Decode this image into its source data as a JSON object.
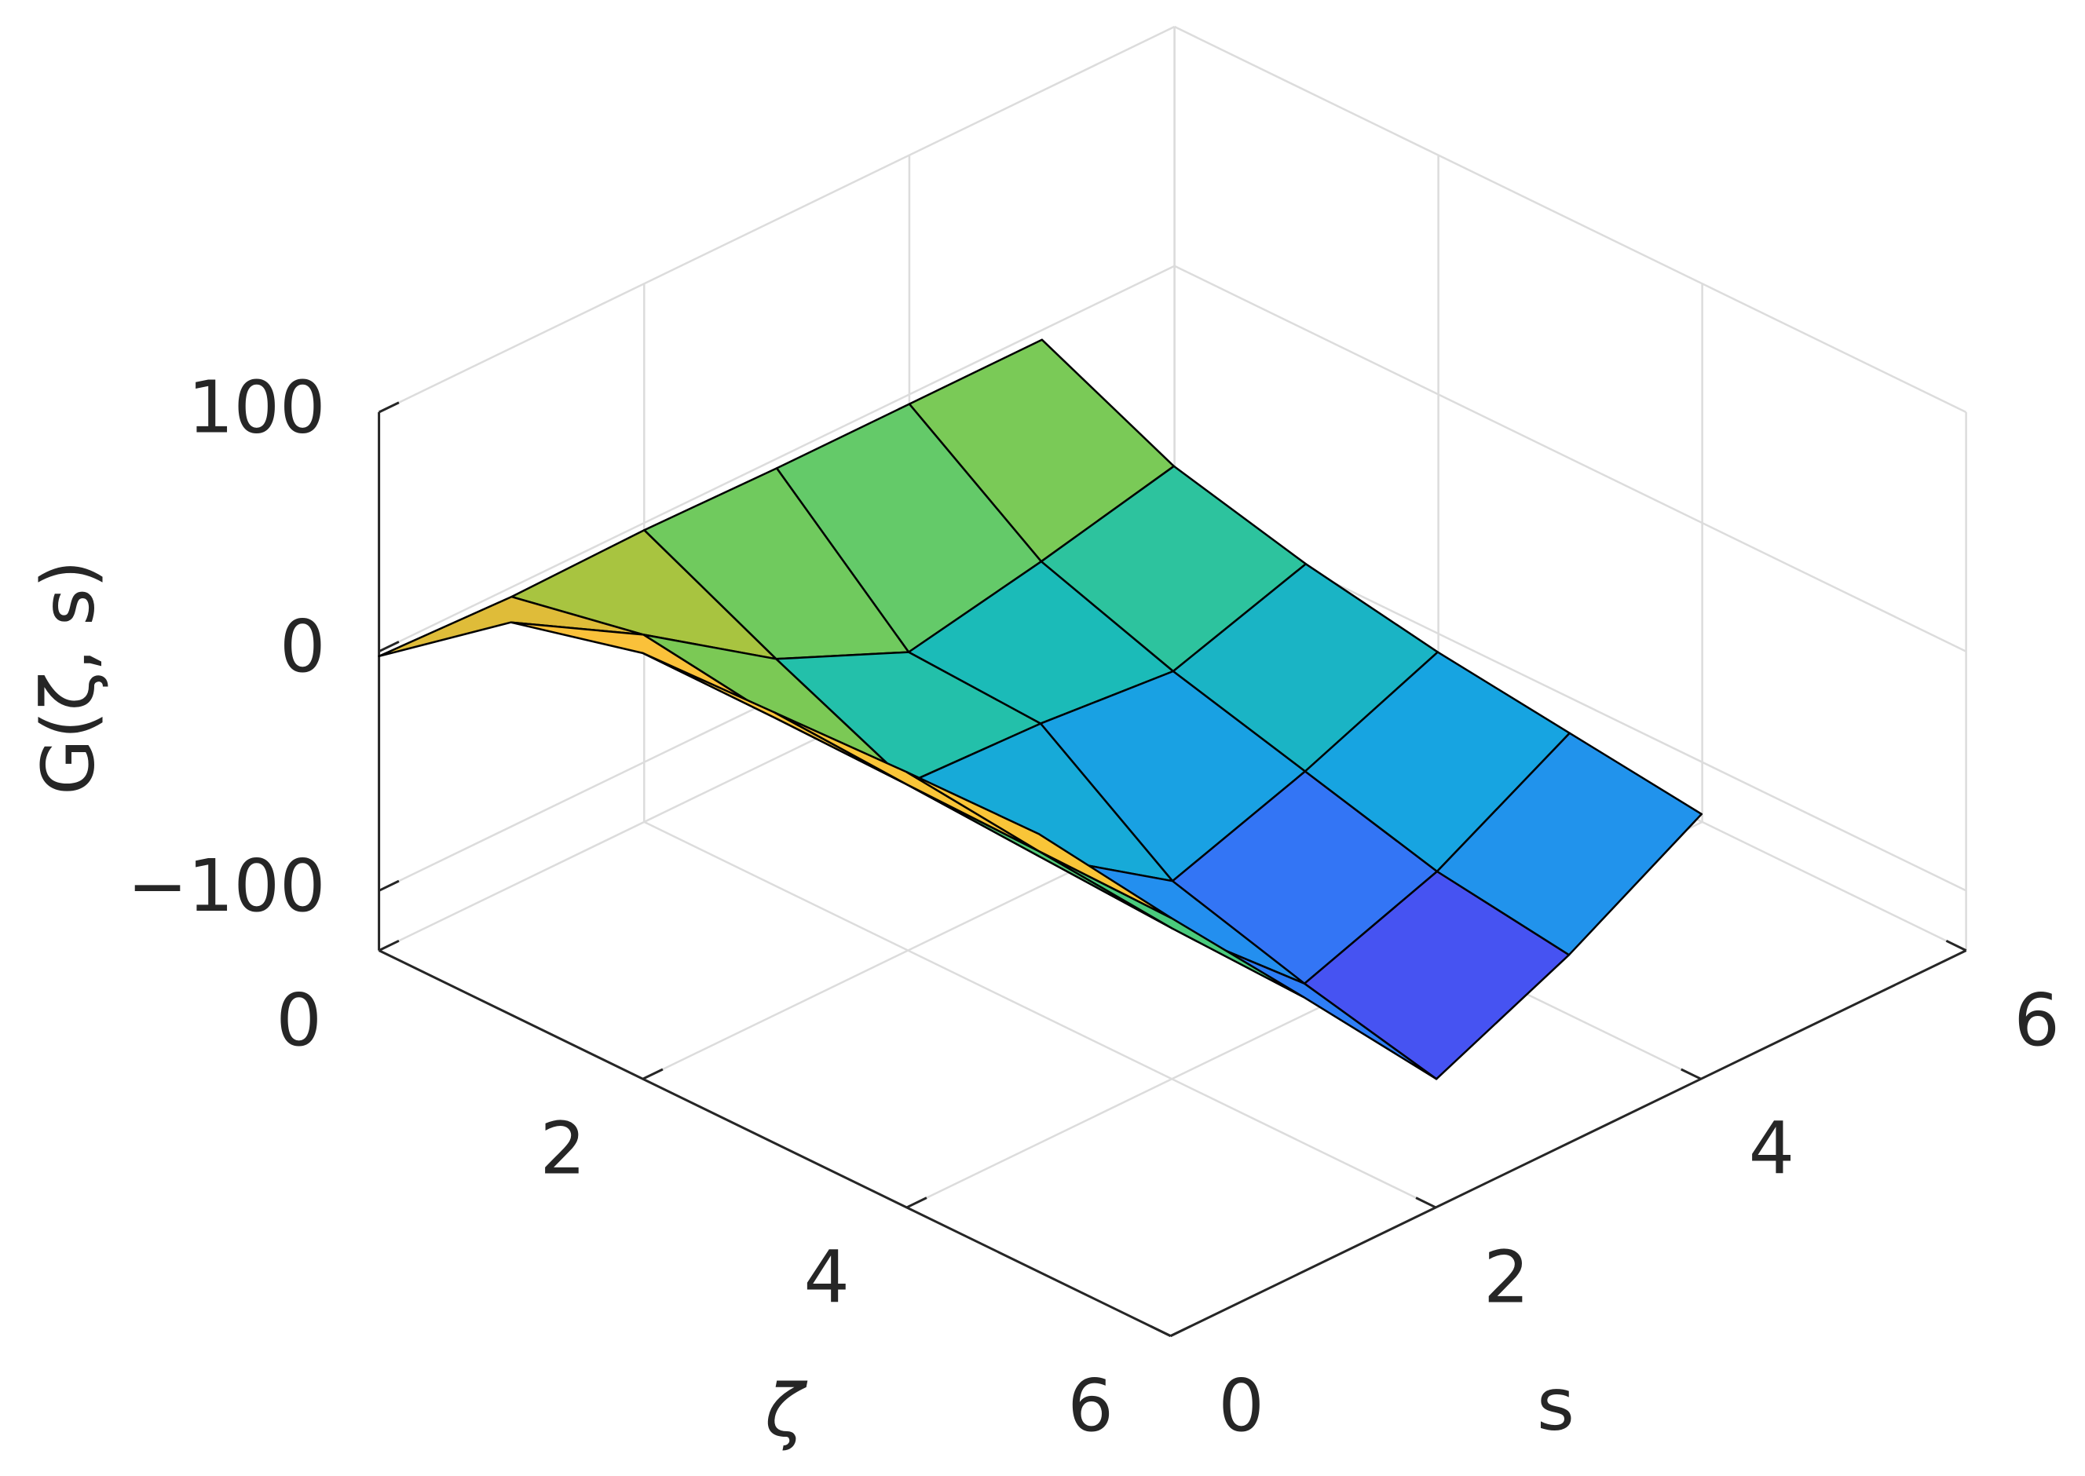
{
  "chart_data": {
    "type": "surface",
    "xlabel": "ζ",
    "ylabel": "s",
    "zlabel": "G(ζ, s)",
    "x": [
      0,
      1,
      2,
      3,
      4,
      5
    ],
    "y": [
      0,
      1,
      2,
      3,
      4,
      5
    ],
    "z": [
      [
        -2,
        -4,
        -3,
        -4,
        -4,
        -4
      ],
      [
        39,
        7,
        -30,
        -54,
        -43,
        -30
      ],
      [
        53,
        -1,
        -55,
        -57,
        -62,
        -44
      ],
      [
        55,
        -2,
        -59,
        -96,
        -77,
        -54
      ],
      [
        57,
        -3,
        -62,
        -112,
        -92,
        -61
      ],
      [
        58,
        -4,
        -64,
        -125,
        -100,
        -68
      ]
    ],
    "xlim": [
      0,
      6
    ],
    "ylim": [
      0,
      6
    ],
    "zlim": [
      -125,
      100
    ],
    "xticks": [
      0,
      2,
      4,
      6
    ],
    "yticks": [
      0,
      2,
      4,
      6
    ],
    "zticks": [
      {
        "value": -100,
        "label": "−100"
      },
      0,
      100
    ],
    "grid": true,
    "colormap": "parula",
    "edge_color": "#000000"
  }
}
